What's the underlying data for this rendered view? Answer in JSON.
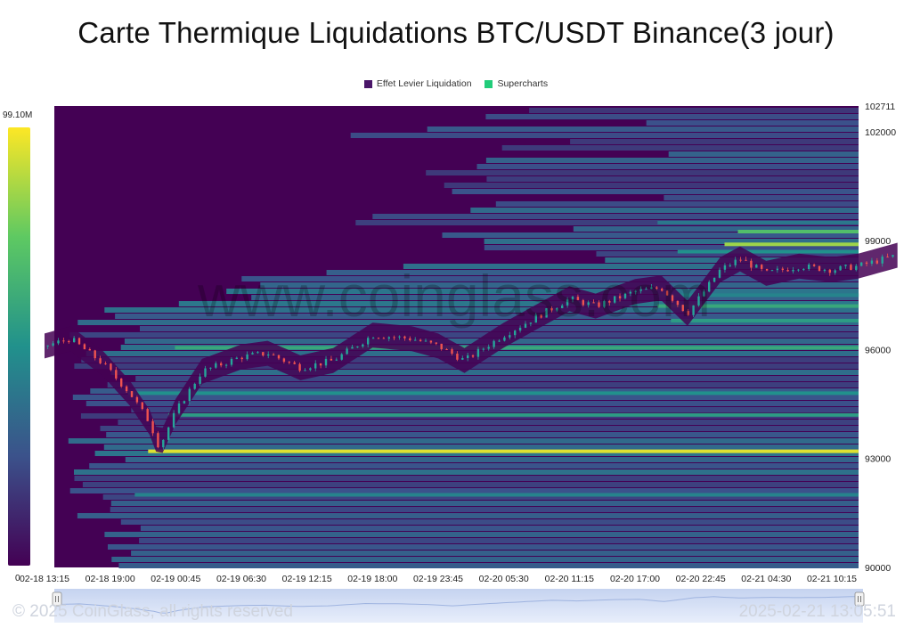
{
  "title": "Carte Thermique Liquidations BTC/USDT Binance(3 jour)",
  "legend": [
    {
      "label": "Effet Levier Liquidation",
      "color": "#4a1669"
    },
    {
      "label": "Supercharts",
      "color": "#22cc7a"
    }
  ],
  "watermark": "www.coinglass.com",
  "footer": {
    "copyright": "© 2025 CoinGlass, all rights reserved",
    "timestamp": "2025-02-21 13:05:51"
  },
  "colors": {
    "background": "#440154",
    "low": "#3b528b",
    "mid": "#21918c",
    "high": "#5ec962",
    "max": "#fde725",
    "candle_up": "#26a69a",
    "candle_down": "#ef5350"
  },
  "chart_data": {
    "type": "heatmap",
    "colorbar": {
      "max_label": "99.10M",
      "min_label": "0",
      "range": [
        0,
        99.1
      ]
    },
    "xlabels": [
      "02-18 13:15",
      "02-18 19:00",
      "02-19 00:45",
      "02-19 06:30",
      "02-19 12:15",
      "02-19 18:00",
      "02-19 23:45",
      "02-20 05:30",
      "02-20 11:15",
      "02-20 17:00",
      "02-20 22:45",
      "02-21 04:30",
      "02-21 10:15"
    ],
    "yticks": [
      90000,
      93000,
      96000,
      99000,
      102000,
      102711
    ],
    "ylim": [
      90000,
      102711
    ],
    "price_series": [
      {
        "t": 0.0,
        "p": 96100
      },
      {
        "t": 0.4,
        "p": 96300
      },
      {
        "t": 0.9,
        "p": 95600
      },
      {
        "t": 1.3,
        "p": 94800
      },
      {
        "t": 1.6,
        "p": 94000
      },
      {
        "t": 1.75,
        "p": 93300
      },
      {
        "t": 2.0,
        "p": 94300
      },
      {
        "t": 2.4,
        "p": 95400
      },
      {
        "t": 3.0,
        "p": 95800
      },
      {
        "t": 3.4,
        "p": 95900
      },
      {
        "t": 3.9,
        "p": 95500
      },
      {
        "t": 4.4,
        "p": 95700
      },
      {
        "t": 5.0,
        "p": 96400
      },
      {
        "t": 5.6,
        "p": 96300
      },
      {
        "t": 6.0,
        "p": 96100
      },
      {
        "t": 6.4,
        "p": 95700
      },
      {
        "t": 7.0,
        "p": 96400
      },
      {
        "t": 7.4,
        "p": 96800
      },
      {
        "t": 8.0,
        "p": 97400
      },
      {
        "t": 8.4,
        "p": 97200
      },
      {
        "t": 9.0,
        "p": 97600
      },
      {
        "t": 9.4,
        "p": 97700
      },
      {
        "t": 9.8,
        "p": 97000
      },
      {
        "t": 10.3,
        "p": 98200
      },
      {
        "t": 10.6,
        "p": 98500
      },
      {
        "t": 11.0,
        "p": 98100
      },
      {
        "t": 11.5,
        "p": 98300
      },
      {
        "t": 12.0,
        "p": 98200
      },
      {
        "t": 12.4,
        "p": 98300
      },
      {
        "t": 12.6,
        "p": 98400
      },
      {
        "t": 13.0,
        "p": 98600
      }
    ],
    "liquidation_levels": [
      {
        "price": 93200,
        "intensity": 0.95,
        "start": 1.4
      },
      {
        "price": 98900,
        "intensity": 0.85,
        "start": 10.0
      },
      {
        "price": 99250,
        "intensity": 0.7,
        "start": 10.2
      },
      {
        "price": 96050,
        "intensity": 0.6,
        "start": 1.8
      },
      {
        "price": 94200,
        "intensity": 0.55,
        "start": 1.7
      },
      {
        "price": 97200,
        "intensity": 0.6,
        "start": 9.0
      },
      {
        "price": 96800,
        "intensity": 0.55,
        "start": 9.2
      },
      {
        "price": 94800,
        "intensity": 0.5,
        "start": 1.1
      },
      {
        "price": 92000,
        "intensity": 0.45,
        "start": 1.2
      },
      {
        "price": 98700,
        "intensity": 0.5,
        "start": 9.3
      },
      {
        "price": 97500,
        "intensity": 0.45,
        "start": 9.0
      },
      {
        "price": 99500,
        "intensity": 0.4,
        "start": 9.0
      }
    ]
  }
}
